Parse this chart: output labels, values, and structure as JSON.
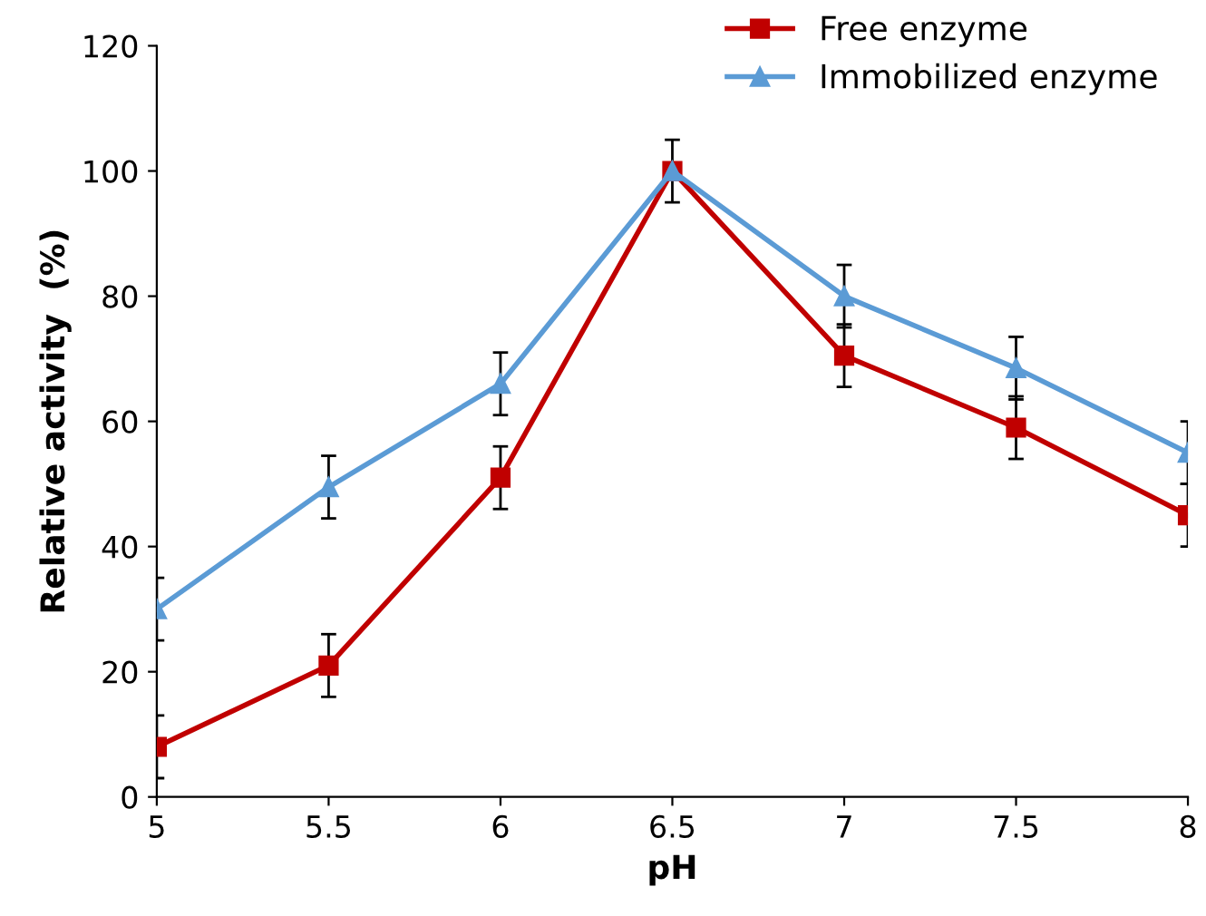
{
  "chart_data": {
    "type": "line",
    "xlabel": "pH",
    "ylabel": "Relative activity  (%)",
    "x": [
      5,
      5.5,
      6,
      6.5,
      7,
      7.5,
      8
    ],
    "series": [
      {
        "name": "Free enzyme",
        "color": "#c00000",
        "marker": "square",
        "values": [
          8,
          21,
          51,
          100,
          70.5,
          59,
          45
        ],
        "errors": [
          5,
          5,
          5,
          5,
          5,
          5,
          5
        ]
      },
      {
        "name": "Immobilized enzyme",
        "color": "#5b9bd5",
        "marker": "triangle",
        "values": [
          30,
          49.5,
          66,
          100,
          80,
          68.5,
          55
        ],
        "errors": [
          5,
          5,
          5,
          null,
          5,
          5,
          5
        ]
      }
    ],
    "xlim": [
      5,
      8
    ],
    "xticks": [
      5,
      5.5,
      6,
      6.5,
      7,
      7.5,
      8
    ],
    "ylim": [
      0,
      120
    ],
    "yticks": [
      0,
      20,
      40,
      60,
      80,
      100,
      120
    ],
    "grid": false,
    "legend": "top right",
    "line_style": "solid"
  }
}
